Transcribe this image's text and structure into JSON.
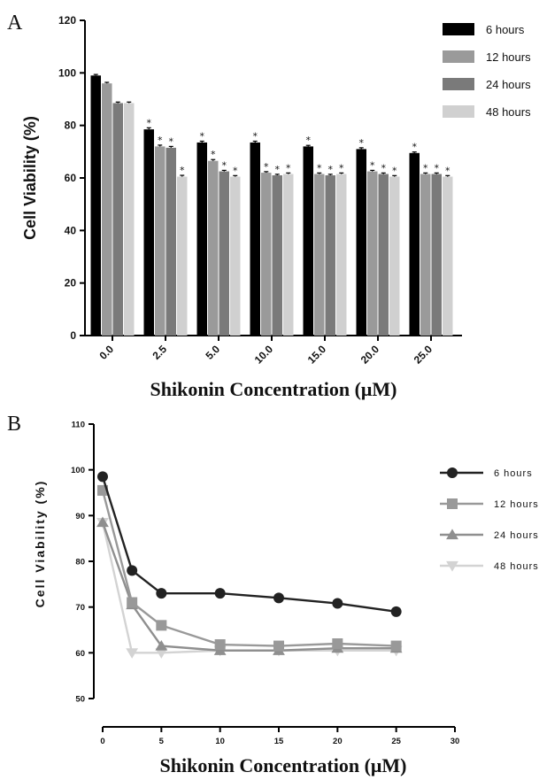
{
  "panels": {
    "a_label": "A",
    "b_label": "B"
  },
  "chart_data": [
    {
      "type": "bar",
      "panel": "A",
      "title": "",
      "xlabel": "Shikonin Concentration (μM)",
      "ylabel": "Cell Viability (%)",
      "ylim": [
        0,
        120
      ],
      "yticks": [
        "0",
        "20",
        "40",
        "60",
        "80",
        "100",
        "120"
      ],
      "categories": [
        "0.0",
        "2.5",
        "5.0",
        "10.0",
        "15.0",
        "20.0",
        "25.0"
      ],
      "legend_position": "top-right",
      "significance_marker": "*",
      "series": [
        {
          "name": "6 hours",
          "color": "#000000",
          "values": [
            99,
            78.5,
            73.5,
            73.5,
            72,
            71,
            69.5
          ],
          "errors": [
            0.4,
            0.6,
            0.5,
            0.5,
            0.4,
            0.5,
            0.4
          ],
          "significant": [
            false,
            true,
            true,
            true,
            true,
            true,
            true
          ]
        },
        {
          "name": "12 hours",
          "color": "#9a9a9a",
          "values": [
            96,
            72,
            66.5,
            62,
            61.5,
            62.5,
            61.5
          ],
          "errors": [
            0.4,
            0.5,
            0.5,
            0.4,
            0.4,
            0.4,
            0.4
          ],
          "significant": [
            false,
            true,
            true,
            true,
            true,
            true,
            true
          ]
        },
        {
          "name": "24 hours",
          "color": "#7a7a7a",
          "values": [
            88.5,
            71.5,
            62.5,
            61,
            61,
            61.5,
            61.5
          ],
          "errors": [
            0.4,
            0.5,
            0.4,
            0.4,
            0.4,
            0.4,
            0.4
          ],
          "significant": [
            false,
            true,
            true,
            true,
            true,
            true,
            true
          ]
        },
        {
          "name": "48 hours",
          "color": "#d0d0d0",
          "values": [
            88.5,
            60.5,
            60.5,
            61.5,
            61.5,
            60.5,
            60.5
          ],
          "errors": [
            0.4,
            0.5,
            0.4,
            0.4,
            0.4,
            0.4,
            0.4
          ],
          "significant": [
            false,
            true,
            true,
            true,
            true,
            true,
            true
          ]
        }
      ]
    },
    {
      "type": "line",
      "panel": "B",
      "title": "",
      "xlabel": "Shikonin Concentration (μM)",
      "ylabel": "Cell Viability (%)",
      "xlim": [
        0,
        30
      ],
      "ylim": [
        50,
        110
      ],
      "xticks": [
        "0",
        "5",
        "10",
        "15",
        "20",
        "25",
        "30"
      ],
      "yticks": [
        "50",
        "60",
        "70",
        "80",
        "90",
        "100",
        "110"
      ],
      "x": [
        0,
        2.5,
        5,
        10,
        15,
        20,
        25
      ],
      "legend_position": "right",
      "series": [
        {
          "name": "6 hours",
          "color": "#222222",
          "marker": "circle",
          "values": [
            98.5,
            78,
            73,
            73,
            72,
            70.8,
            69
          ]
        },
        {
          "name": "12 hours",
          "color": "#999999",
          "marker": "square",
          "values": [
            95.5,
            71,
            66,
            61.8,
            61.5,
            62,
            61.5
          ]
        },
        {
          "name": "24 hours",
          "color": "#8f8f8f",
          "marker": "triangle-up",
          "values": [
            88.5,
            70.5,
            61.5,
            60.5,
            60.5,
            61,
            61
          ]
        },
        {
          "name": "48 hours",
          "color": "#d3d3d3",
          "marker": "triangle-down",
          "values": [
            88.5,
            60,
            60,
            60.5,
            60.5,
            60.5,
            60.5
          ]
        }
      ]
    }
  ]
}
